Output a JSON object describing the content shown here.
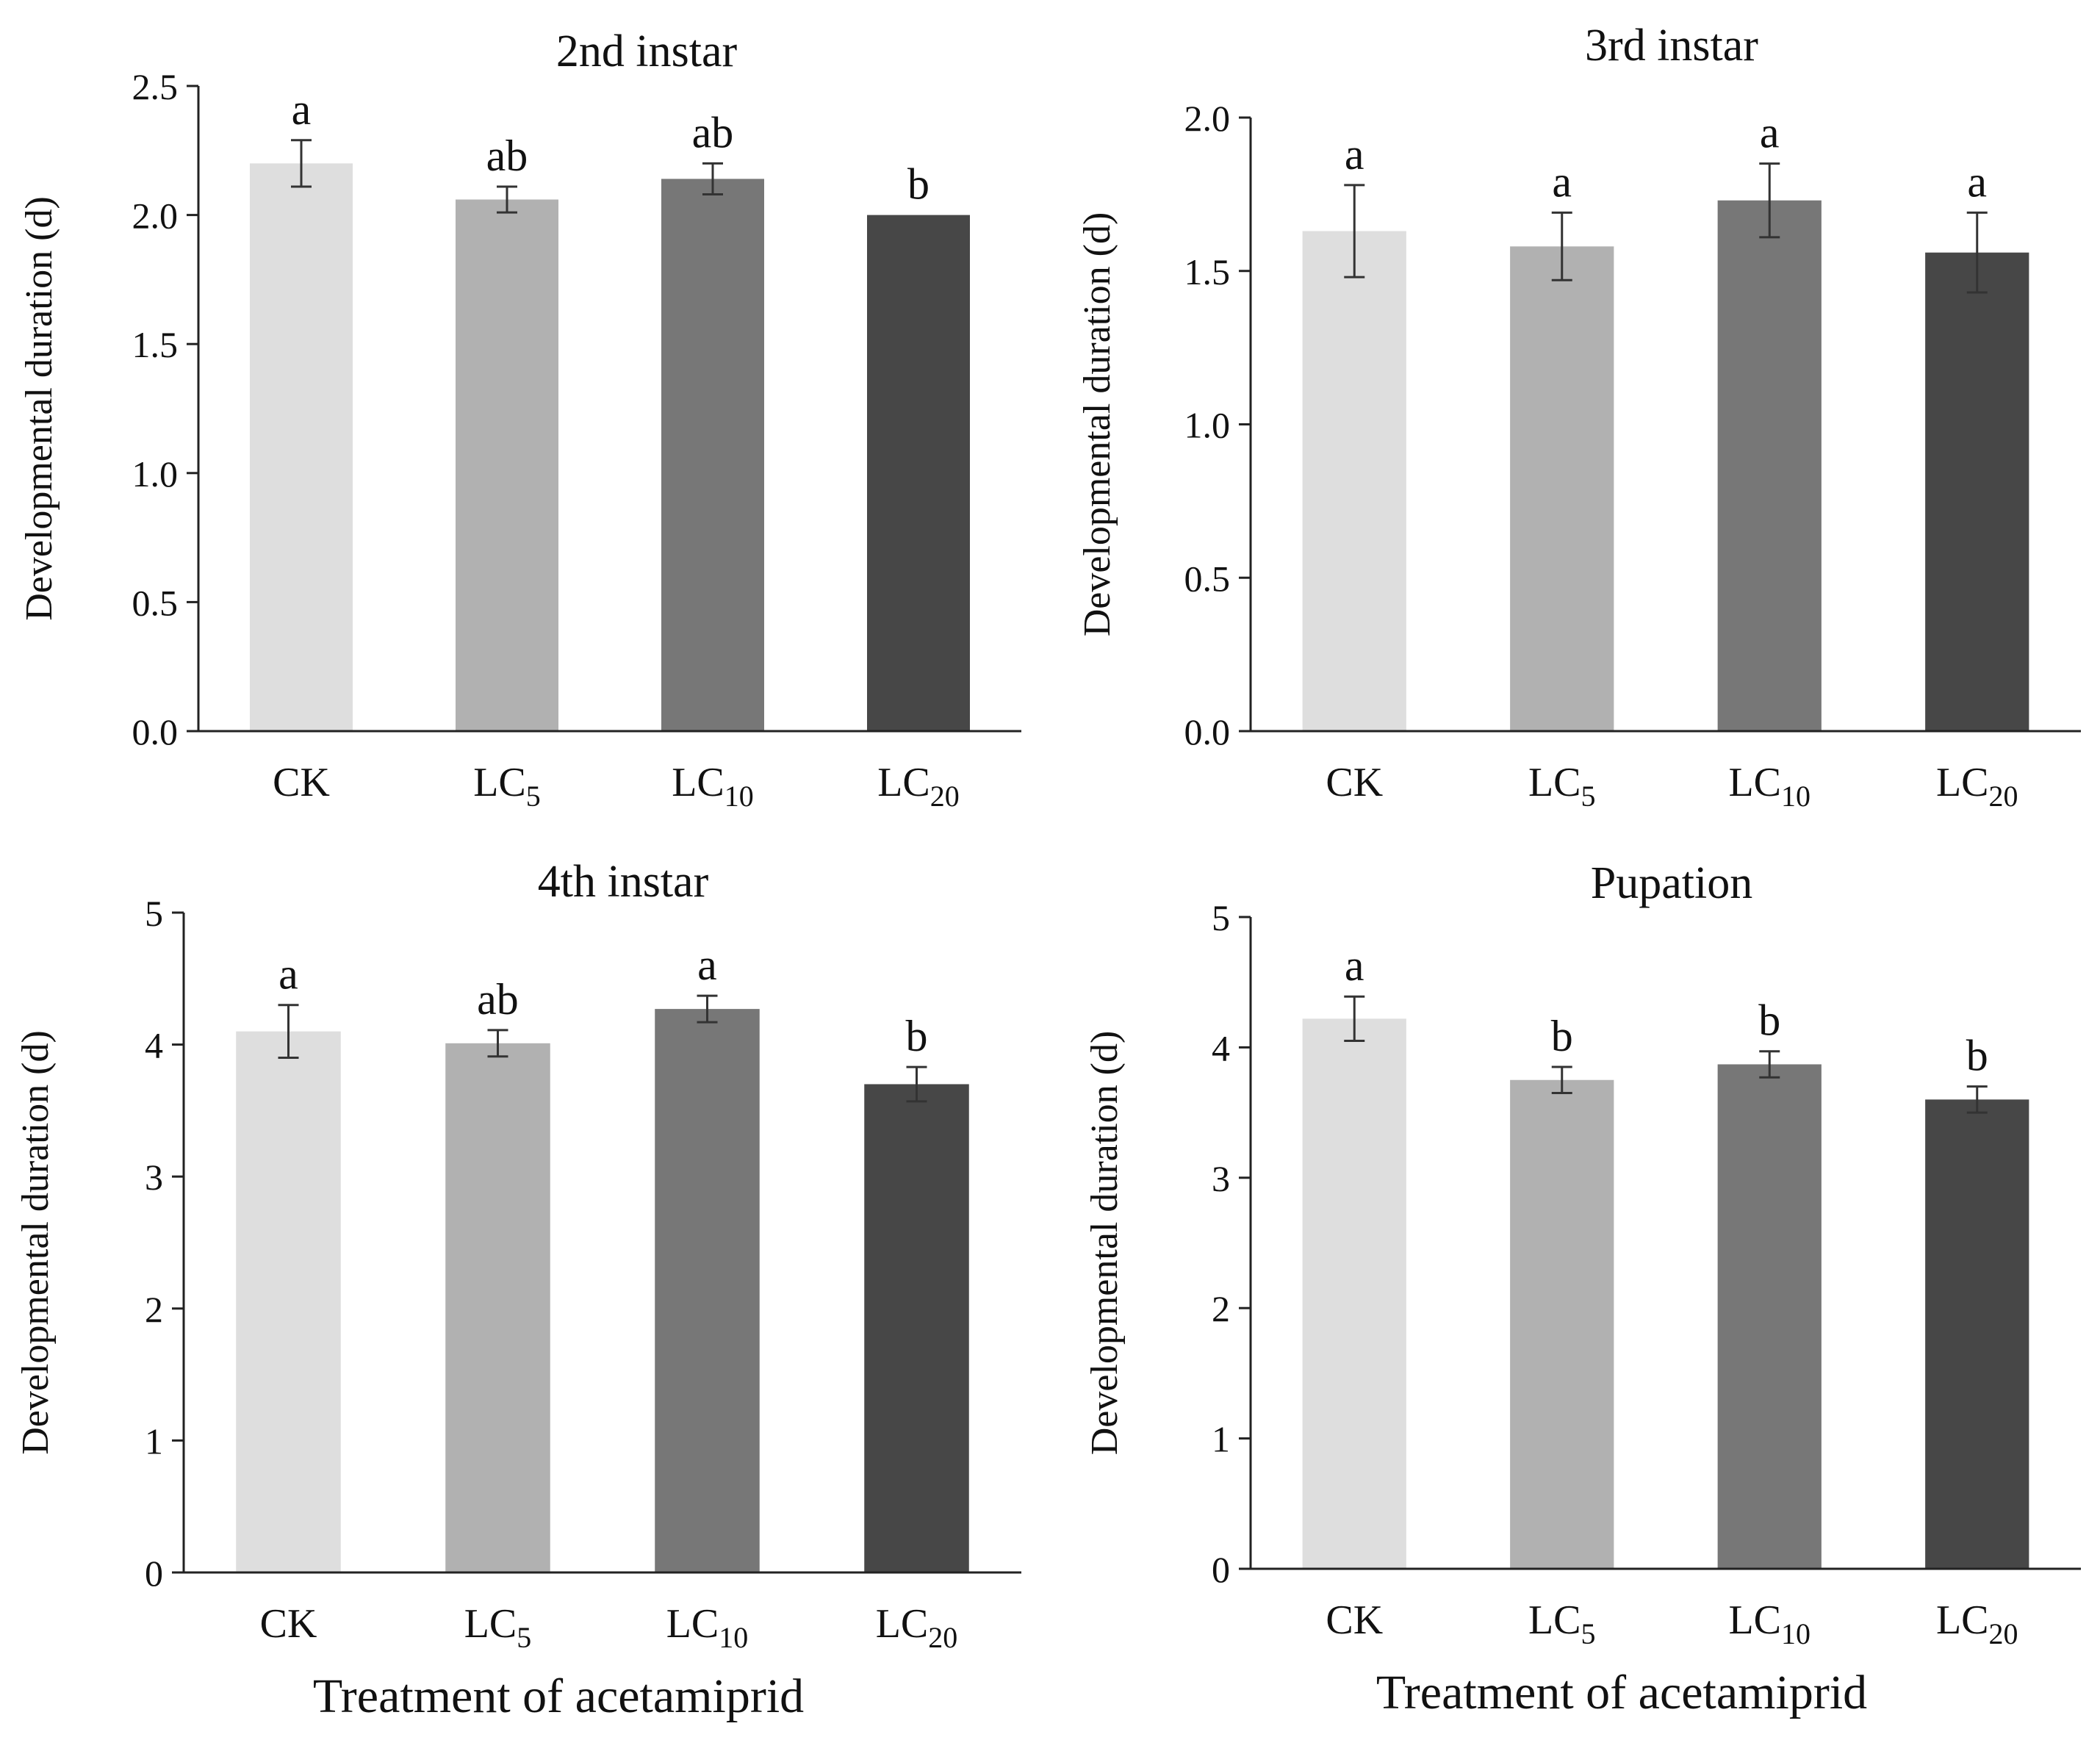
{
  "chart_data": [
    {
      "type": "bar",
      "title": "2nd instar",
      "ylabel": "Developmental  duration (d)",
      "xlabel": "",
      "categories": [
        {
          "base": "CK",
          "sub": ""
        },
        {
          "base": "LC",
          "sub": "5"
        },
        {
          "base": "LC",
          "sub": "10"
        },
        {
          "base": "LC",
          "sub": "20"
        }
      ],
      "values": [
        2.2,
        2.06,
        2.14,
        2.0
      ],
      "errors": [
        0.09,
        0.05,
        0.06,
        0.0
      ],
      "letters": [
        "a",
        "ab",
        "ab",
        "b"
      ],
      "ylim": [
        0,
        2.5
      ],
      "yticks": [
        "0.0",
        "0.5",
        "1.0",
        "1.5",
        "2.0",
        "2.5"
      ]
    },
    {
      "type": "bar",
      "title": "3rd instar",
      "ylabel": "Developmental  duration (d)",
      "xlabel": "",
      "categories": [
        {
          "base": "CK",
          "sub": ""
        },
        {
          "base": "LC",
          "sub": "5"
        },
        {
          "base": "LC",
          "sub": "10"
        },
        {
          "base": "LC",
          "sub": "20"
        }
      ],
      "values": [
        1.63,
        1.58,
        1.73,
        1.56
      ],
      "errors": [
        0.15,
        0.11,
        0.12,
        0.13
      ],
      "letters": [
        "a",
        "a",
        "a",
        "a"
      ],
      "ylim": [
        0,
        2.0
      ],
      "yticks": [
        "0.0",
        "0.5",
        "1.0",
        "1.5",
        "2.0"
      ]
    },
    {
      "type": "bar",
      "title": "4th instar",
      "ylabel": "Developmental  duration (d)",
      "xlabel": "Treatment  of acetamiprid",
      "categories": [
        {
          "base": "CK",
          "sub": ""
        },
        {
          "base": "LC",
          "sub": "5"
        },
        {
          "base": "LC",
          "sub": "10"
        },
        {
          "base": "LC",
          "sub": "20"
        }
      ],
      "values": [
        4.1,
        4.01,
        4.27,
        3.7
      ],
      "errors": [
        0.2,
        0.1,
        0.1,
        0.13
      ],
      "letters": [
        "a",
        "ab",
        "a",
        "b"
      ],
      "ylim": [
        0,
        5
      ],
      "yticks": [
        "0",
        "1",
        "2",
        "3",
        "4",
        "5"
      ]
    },
    {
      "type": "bar",
      "title": "Pupation",
      "ylabel": "Developmental  duration (d)",
      "xlabel": "Treatment  of acetamiprid",
      "categories": [
        {
          "base": "CK",
          "sub": ""
        },
        {
          "base": "LC",
          "sub": "5"
        },
        {
          "base": "LC",
          "sub": "10"
        },
        {
          "base": "LC",
          "sub": "20"
        }
      ],
      "values": [
        4.22,
        3.75,
        3.87,
        3.6
      ],
      "errors": [
        0.17,
        0.1,
        0.1,
        0.1
      ],
      "letters": [
        "a",
        "b",
        "b",
        "b"
      ],
      "ylim": [
        0,
        5
      ],
      "yticks": [
        "0",
        "1",
        "2",
        "3",
        "4",
        "5"
      ]
    }
  ],
  "colors": {
    "bars": [
      "#dedede",
      "#b1b1b1",
      "#777777",
      "#474747"
    ],
    "axis": "#222222",
    "error_bar": "#333333"
  }
}
